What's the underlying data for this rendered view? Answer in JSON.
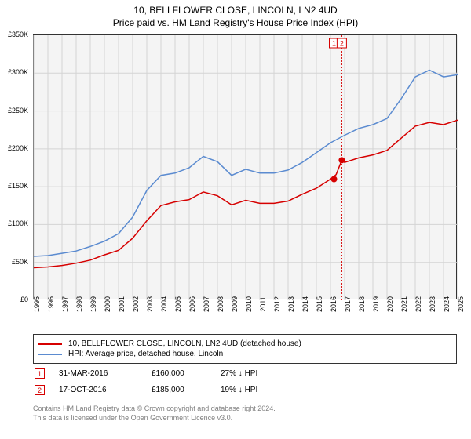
{
  "title_line1": "10, BELLFLOWER CLOSE, LINCOLN, LN2 4UD",
  "title_line2": "Price paid vs. HM Land Registry's House Price Index (HPI)",
  "chart": {
    "type": "line",
    "background_color": "#f4f4f4",
    "border_color": "#333333",
    "grid_color": "#d4d4d4",
    "ylim": [
      0,
      350000
    ],
    "ytick_step": 50000,
    "yticks": [
      "£0",
      "£50K",
      "£100K",
      "£150K",
      "£200K",
      "£250K",
      "£300K",
      "£350K"
    ],
    "x_start_year": 1995,
    "x_end_year": 2025,
    "xticks": [
      "1995",
      "1996",
      "1997",
      "1998",
      "1999",
      "2000",
      "2001",
      "2002",
      "2003",
      "2004",
      "2005",
      "2006",
      "2007",
      "2008",
      "2009",
      "2010",
      "2011",
      "2012",
      "2013",
      "2014",
      "2015",
      "2016",
      "2017",
      "2018",
      "2019",
      "2020",
      "2021",
      "2022",
      "2023",
      "2024",
      "2025"
    ],
    "series": [
      {
        "id": "price_paid",
        "label": "10, BELLFLOWER CLOSE, LINCOLN, LN2 4UD (detached house)",
        "color": "#d60000",
        "line_width": 1.5,
        "points": [
          [
            1995,
            43000
          ],
          [
            1996,
            44000
          ],
          [
            1997,
            46000
          ],
          [
            1998,
            49000
          ],
          [
            1999,
            53000
          ],
          [
            2000,
            60000
          ],
          [
            2001,
            66000
          ],
          [
            2002,
            82000
          ],
          [
            2003,
            105000
          ],
          [
            2004,
            125000
          ],
          [
            2005,
            130000
          ],
          [
            2006,
            133000
          ],
          [
            2007,
            143000
          ],
          [
            2008,
            138000
          ],
          [
            2009,
            126000
          ],
          [
            2010,
            132000
          ],
          [
            2011,
            128000
          ],
          [
            2012,
            128000
          ],
          [
            2013,
            131000
          ],
          [
            2014,
            140000
          ],
          [
            2015,
            148000
          ],
          [
            2016,
            160000
          ],
          [
            2016.4,
            166000
          ],
          [
            2016.8,
            185000
          ],
          [
            2017,
            182000
          ],
          [
            2018,
            188000
          ],
          [
            2019,
            192000
          ],
          [
            2020,
            198000
          ],
          [
            2021,
            214000
          ],
          [
            2022,
            230000
          ],
          [
            2023,
            235000
          ],
          [
            2024,
            232000
          ],
          [
            2025,
            238000
          ]
        ]
      },
      {
        "id": "hpi",
        "label": "HPI: Average price, detached house, Lincoln",
        "color": "#5b8bd0",
        "line_width": 1.5,
        "points": [
          [
            1995,
            58000
          ],
          [
            1996,
            59000
          ],
          [
            1997,
            62000
          ],
          [
            1998,
            65000
          ],
          [
            1999,
            71000
          ],
          [
            2000,
            78000
          ],
          [
            2001,
            88000
          ],
          [
            2002,
            110000
          ],
          [
            2003,
            145000
          ],
          [
            2004,
            165000
          ],
          [
            2005,
            168000
          ],
          [
            2006,
            175000
          ],
          [
            2007,
            190000
          ],
          [
            2008,
            183000
          ],
          [
            2009,
            165000
          ],
          [
            2010,
            173000
          ],
          [
            2011,
            168000
          ],
          [
            2012,
            168000
          ],
          [
            2013,
            172000
          ],
          [
            2014,
            182000
          ],
          [
            2015,
            195000
          ],
          [
            2016,
            208000
          ],
          [
            2017,
            218000
          ],
          [
            2018,
            227000
          ],
          [
            2019,
            232000
          ],
          [
            2020,
            240000
          ],
          [
            2021,
            266000
          ],
          [
            2022,
            295000
          ],
          [
            2023,
            304000
          ],
          [
            2024,
            295000
          ],
          [
            2025,
            298000
          ]
        ]
      }
    ],
    "sale_markers": [
      {
        "n": "1",
        "year": 2016.25,
        "price": 160000,
        "color": "#d60000"
      },
      {
        "n": "2",
        "year": 2016.8,
        "price": 185000,
        "color": "#d60000"
      }
    ]
  },
  "legend": {
    "rows": [
      {
        "color": "#d60000",
        "text": "10, BELLFLOWER CLOSE, LINCOLN, LN2 4UD (detached house)"
      },
      {
        "color": "#5b8bd0",
        "text": "HPI: Average price, detached house, Lincoln"
      }
    ]
  },
  "sales": [
    {
      "n": "1",
      "color": "#d60000",
      "date": "31-MAR-2016",
      "price": "£160,000",
      "diff": "27% ↓ HPI"
    },
    {
      "n": "2",
      "color": "#d60000",
      "date": "17-OCT-2016",
      "price": "£185,000",
      "diff": "19% ↓ HPI"
    }
  ],
  "footer_line1": "Contains HM Land Registry data © Crown copyright and database right 2024.",
  "footer_line2": "This data is licensed under the Open Government Licence v3.0."
}
